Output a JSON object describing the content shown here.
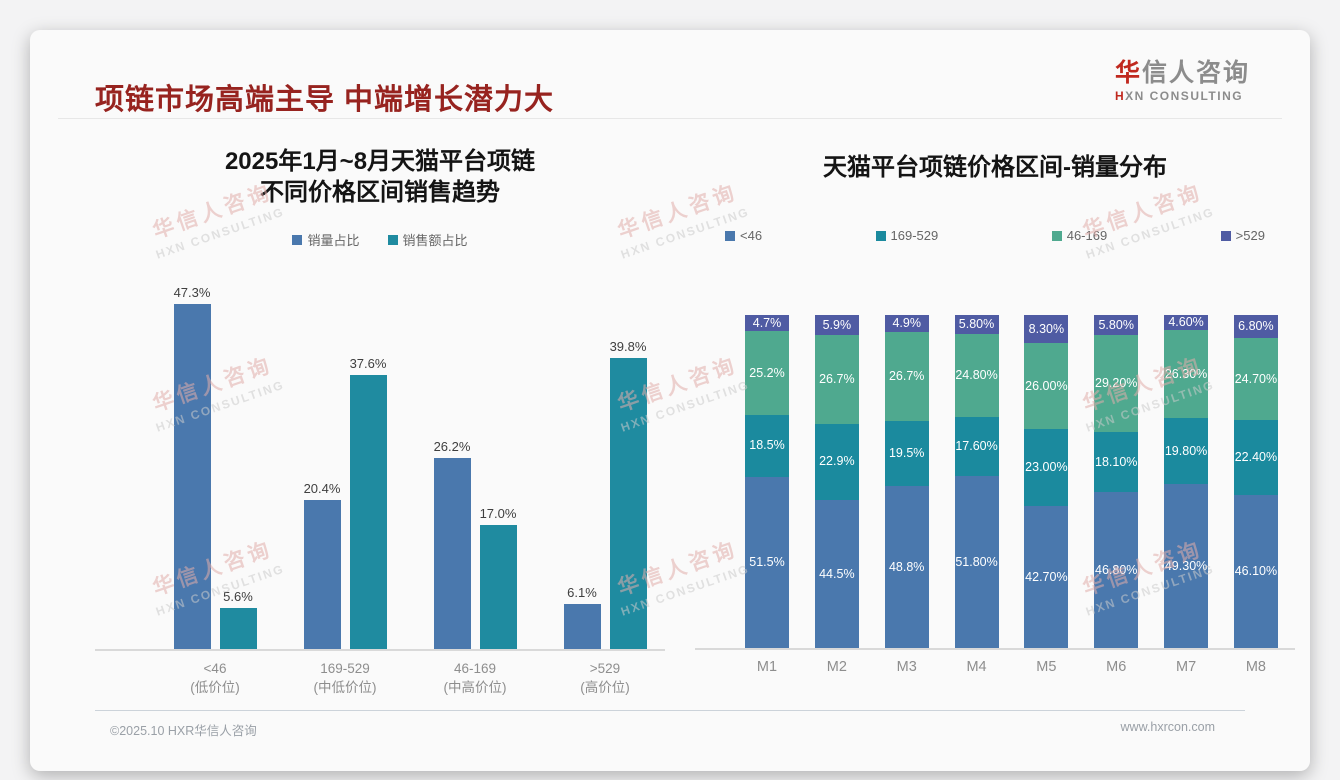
{
  "header": {
    "title": "项链市场高端主导 中端增长潜力大",
    "title_color": "#97231f"
  },
  "logo": {
    "cn_accent": "华",
    "cn_rest": "信人咨询",
    "en_accent": "H",
    "en_rest": "XN CONSULTING",
    "accent_color": "#c0281e",
    "text_color": "#8c8c8c"
  },
  "watermark": {
    "cn": "华信人咨询",
    "en": "HXN CONSULTING",
    "cn_color": "#e2aeab",
    "en_color": "#cccccc"
  },
  "chart_data": [
    {
      "type": "bar",
      "title": "2025年1月~8月天猫平台项链 不同价格区间销售趋势",
      "title_lines": [
        "2025年1月~8月天猫平台项链",
        "不同价格区间销售趋势"
      ],
      "categories": [
        "<46",
        "169-529",
        "46-169",
        ">529"
      ],
      "category_sublabels": [
        "(低价位)",
        "(中低价位)",
        "(中高价位)",
        "(高价位)"
      ],
      "series": [
        {
          "name": "销量占比",
          "color": "#4a78ad",
          "values": [
            47.3,
            20.4,
            26.2,
            6.1
          ],
          "labels": [
            "47.3%",
            "20.4%",
            "26.2%",
            "6.1%"
          ]
        },
        {
          "name": "销售额占比",
          "color": "#1f8ba0",
          "values": [
            5.6,
            37.6,
            17.0,
            39.8
          ],
          "labels": [
            "5.6%",
            "37.6%",
            "17.0%",
            "39.8%"
          ]
        }
      ],
      "ylim": [
        0,
        50
      ],
      "grid": false,
      "legend_position": "top",
      "data_labels": true
    },
    {
      "type": "bar",
      "stacked": true,
      "title": "天猫平台项链价格区间-销量分布",
      "categories": [
        "M1",
        "M2",
        "M3",
        "M4",
        "M5",
        "M6",
        "M7",
        "M8"
      ],
      "series": [
        {
          "name": "<46",
          "color": "#4a78ad",
          "values": [
            51.5,
            44.5,
            48.8,
            51.8,
            42.7,
            46.8,
            49.3,
            46.1
          ],
          "labels": [
            "51.5%",
            "44.5%",
            "48.8%",
            "51.80%",
            "42.70%",
            "46.80%",
            "49.30%",
            "46.10%"
          ]
        },
        {
          "name": "169-529",
          "color": "#1b8a9e",
          "values": [
            18.5,
            22.9,
            19.5,
            17.6,
            23.0,
            18.1,
            19.8,
            22.4
          ],
          "labels": [
            "18.5%",
            "22.9%",
            "19.5%",
            "17.60%",
            "23.00%",
            "18.10%",
            "19.80%",
            "22.40%"
          ]
        },
        {
          "name": "46-169",
          "color": "#4fa98f",
          "values": [
            25.2,
            26.7,
            26.7,
            24.8,
            26.0,
            29.2,
            26.3,
            24.7
          ],
          "labels": [
            "25.2%",
            "26.7%",
            "26.7%",
            "24.80%",
            "26.00%",
            "29.20%",
            "26.30%",
            "24.70%"
          ]
        },
        {
          "name": ">529",
          "color": "#4f5ba3",
          "values": [
            4.7,
            5.9,
            4.9,
            5.8,
            8.3,
            5.8,
            4.6,
            6.8
          ],
          "labels": [
            "4.7%",
            "5.9%",
            "4.9%",
            "5.80%",
            "8.30%",
            "5.80%",
            "4.60%",
            "6.80%"
          ]
        }
      ],
      "ylim": [
        0,
        100
      ],
      "grid": false,
      "legend_position": "top",
      "data_labels": true
    }
  ],
  "footer": {
    "left": "©2025.10 HXR华信人咨询",
    "right": "www.hxrcon.com"
  }
}
